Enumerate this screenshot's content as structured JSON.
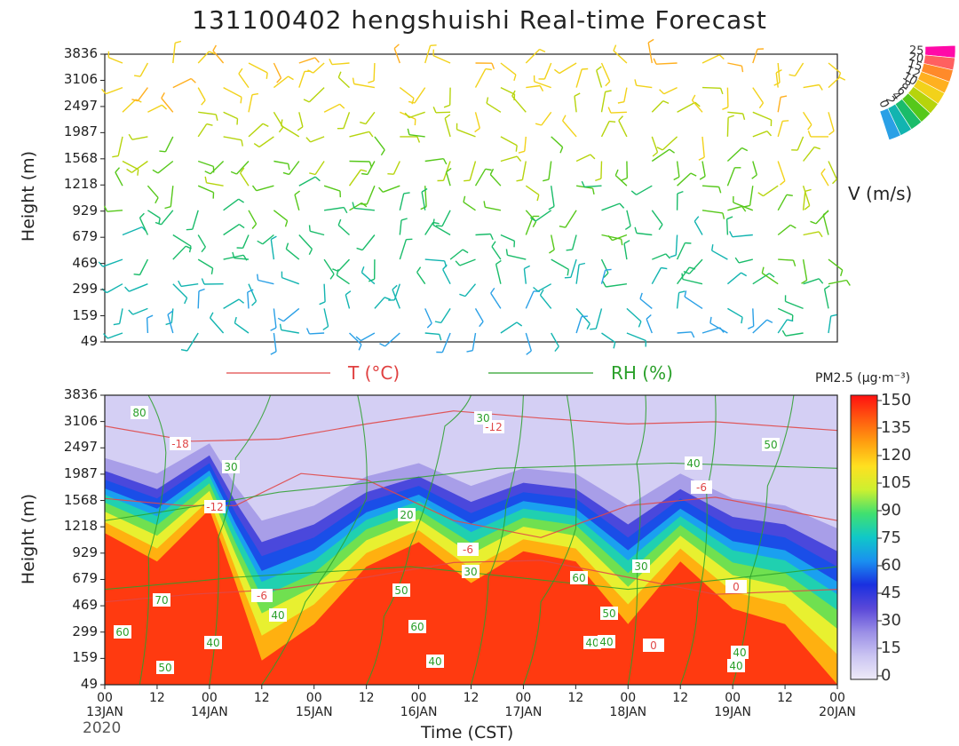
{
  "title": "131100402 hengshuishi Real-time Forecast",
  "y_label": "Height (m)",
  "x_label": "Time (CST)",
  "year": "2020",
  "height_ticks": [
    "3836",
    "3106",
    "2497",
    "1987",
    "1568",
    "1218",
    "929",
    "679",
    "469",
    "299",
    "159",
    "49"
  ],
  "time_ticks": [
    {
      "hour": "00",
      "date": "13JAN"
    },
    {
      "hour": "12",
      "date": ""
    },
    {
      "hour": "00",
      "date": "14JAN"
    },
    {
      "hour": "12",
      "date": ""
    },
    {
      "hour": "00",
      "date": "15JAN"
    },
    {
      "hour": "12",
      "date": ""
    },
    {
      "hour": "00",
      "date": "16JAN"
    },
    {
      "hour": "12",
      "date": ""
    },
    {
      "hour": "00",
      "date": "17JAN"
    },
    {
      "hour": "12",
      "date": ""
    },
    {
      "hour": "00",
      "date": "18JAN"
    },
    {
      "hour": "12",
      "date": ""
    },
    {
      "hour": "00",
      "date": "19JAN"
    },
    {
      "hour": "12",
      "date": ""
    },
    {
      "hour": "00",
      "date": "20JAN"
    }
  ],
  "wind_legend": {
    "label": "V (m/s)",
    "ticks": [
      "25",
      "20",
      "15",
      "12",
      "10",
      "8",
      "6",
      "4",
      "2",
      "0"
    ],
    "colors": [
      "#ff0aa8",
      "#ff6060",
      "#ff8a2a",
      "#ffb020",
      "#f2d21a",
      "#b6d40c",
      "#56c81a",
      "#1abc6a",
      "#12b4b0",
      "#2aa0e6"
    ]
  },
  "lower_legend": {
    "t_label": "T (°C)",
    "rh_label": "RH (%)",
    "t_color": "#e04848",
    "rh_color": "#2aa02a"
  },
  "pm_colorbar": {
    "label": "PM2.5 (μg·m⁻³)",
    "ticks": [
      "150",
      "135",
      "120",
      "105",
      "90",
      "75",
      "60",
      "45",
      "30",
      "15",
      "0"
    ],
    "colors": [
      "#ff1010",
      "#ff5a10",
      "#ffa010",
      "#ffe020",
      "#ccf030",
      "#40e070",
      "#10c8c8",
      "#1a90f0",
      "#1a30e0",
      "#5a48d8",
      "#9a8ee6",
      "#cac4f2",
      "#eeeaf8"
    ]
  },
  "chart_data": {
    "type": "heatmap",
    "x_range": [
      "2020-01-13 00",
      "2020-01-20 00"
    ],
    "y": [
      49,
      159,
      299,
      469,
      679,
      929,
      1218,
      1568,
      1987,
      2497,
      3106,
      3836
    ],
    "pm25_top_boundary_height_m": {
      "time_hours_from_start": [
        0,
        12,
        24,
        30,
        36,
        48,
        60,
        72,
        84,
        96,
        108,
        120,
        132,
        144,
        156,
        168
      ],
      "polluted_top_m": [
        1600,
        1300,
        1900,
        1100,
        600,
        800,
        1250,
        1500,
        1100,
        1400,
        1300,
        800,
        1300,
        900,
        800,
        500
      ]
    },
    "t_contour_labels": [
      "-18",
      "-12",
      "-6",
      "-6",
      "-12",
      "-6",
      "0",
      "0"
    ],
    "rh_contour_labels": [
      "80",
      "70",
      "60",
      "50",
      "30",
      "40",
      "40",
      "20",
      "30",
      "50",
      "60",
      "30",
      "40",
      "60",
      "50",
      "40",
      "40",
      "30",
      "40",
      "50",
      "40",
      "40"
    ]
  }
}
